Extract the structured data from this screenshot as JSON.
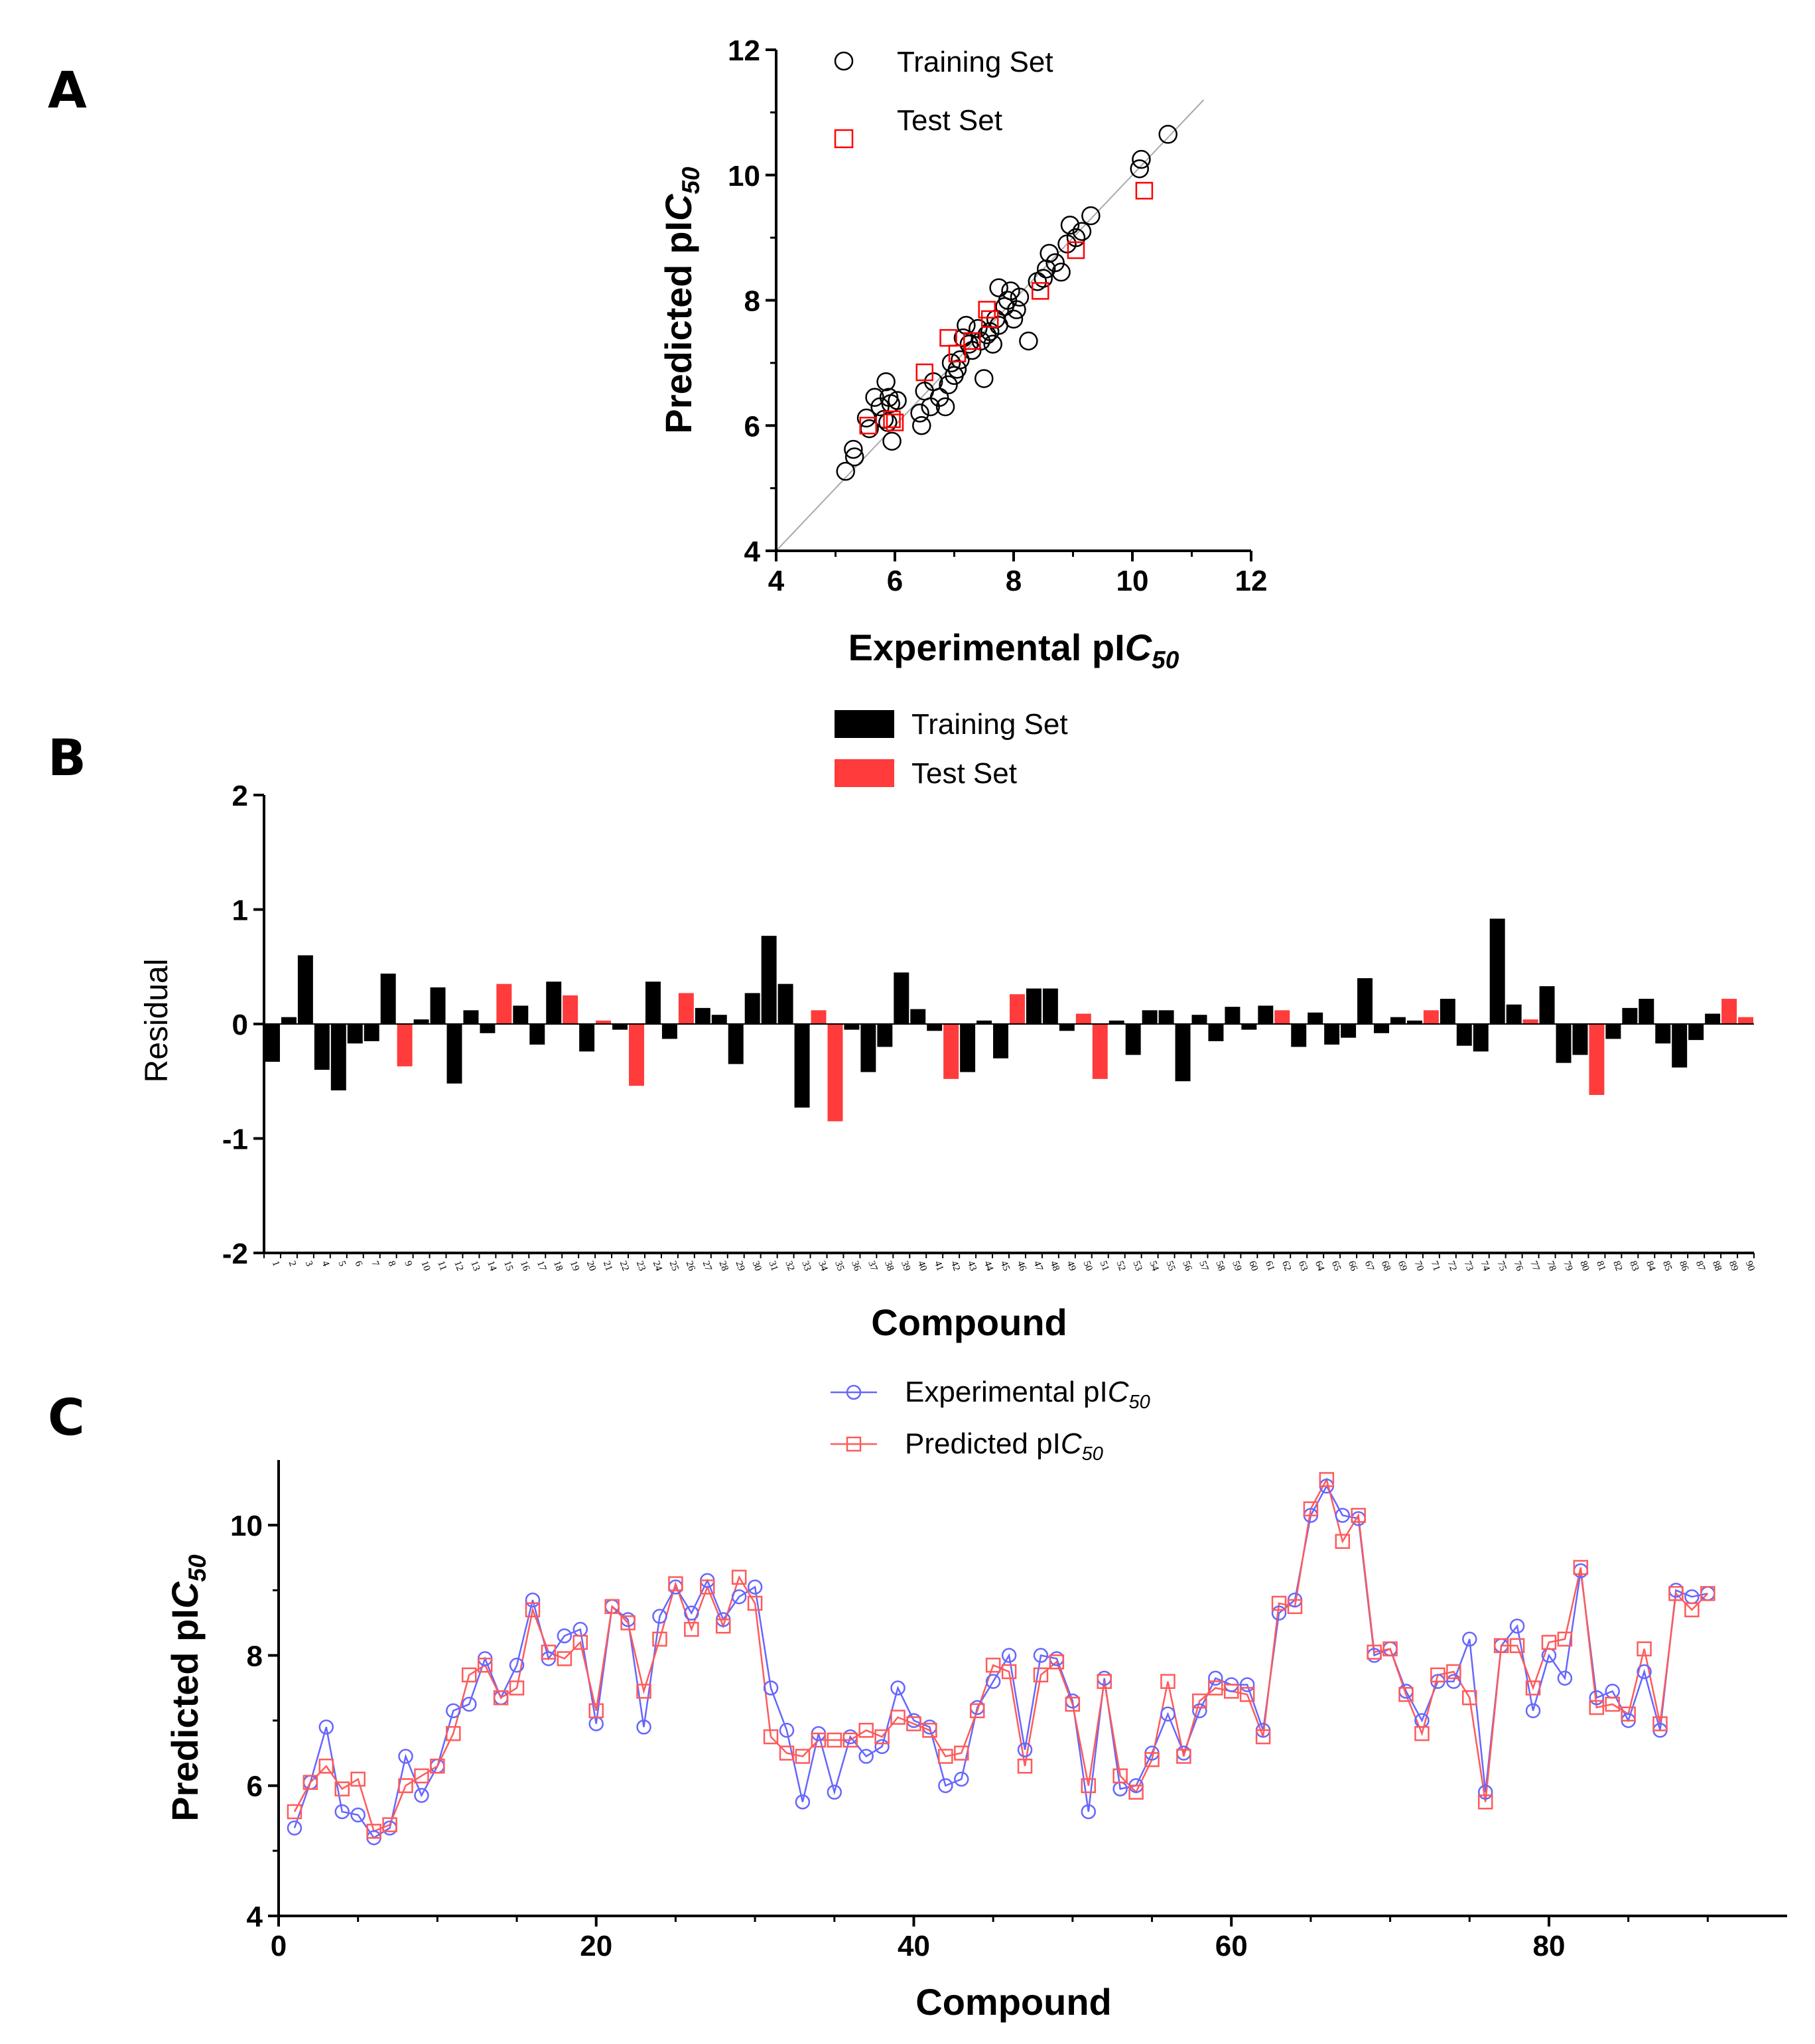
{
  "panels": {
    "a": "A",
    "b": "B",
    "c": "C"
  },
  "chart_data": [
    {
      "type": "scatter",
      "xlabel": "Experimental pIC50",
      "ylabel": "Predicted pIC50",
      "xlim": [
        4,
        12
      ],
      "ylim": [
        4,
        12
      ],
      "xticks": [
        "4",
        "6",
        "8",
        "10",
        "12"
      ],
      "yticks": [
        "4",
        "6",
        "8",
        "10",
        "12"
      ],
      "legend": "top-left",
      "grid": false,
      "identity_line": true,
      "series": [
        {
          "name": "Training Set",
          "marker": "circle",
          "color": "#000000",
          "x": [
            5.17,
            5.32,
            5.3,
            5.52,
            5.57,
            5.66,
            5.75,
            5.85,
            5.9,
            5.93,
            6.04,
            5.95,
            5.88,
            5.82,
            6.45,
            6.6,
            6.5,
            6.42,
            6.65,
            6.75,
            6.85,
            6.9,
            7.0,
            7.1,
            7.15,
            7.2,
            7.3,
            7.4,
            7.45,
            7.5,
            7.6,
            7.7,
            7.75,
            7.85,
            7.9,
            7.95,
            8.05,
            8.1,
            8.25,
            8.4,
            8.55,
            8.6,
            8.7,
            8.8,
            8.9,
            8.95,
            9.05,
            9.15,
            9.3,
            10.12,
            10.15,
            10.6,
            7.65,
            7.75,
            7.55,
            6.95,
            7.05,
            7.25,
            8.0,
            8.5
          ],
          "y": [
            5.27,
            5.5,
            5.62,
            6.12,
            5.95,
            6.45,
            6.3,
            6.7,
            6.45,
            6.35,
            6.4,
            5.75,
            6.05,
            6.1,
            6.0,
            6.3,
            6.55,
            6.2,
            6.7,
            6.45,
            6.3,
            6.65,
            6.8,
            7.05,
            7.4,
            7.6,
            7.2,
            7.55,
            7.35,
            6.75,
            7.5,
            7.7,
            8.2,
            7.9,
            8.0,
            8.15,
            7.85,
            8.05,
            7.35,
            8.3,
            8.5,
            8.75,
            8.6,
            8.45,
            8.9,
            9.2,
            9.0,
            9.1,
            9.35,
            10.1,
            10.25,
            10.65,
            7.3,
            7.6,
            7.45,
            7.0,
            6.9,
            7.3,
            7.7,
            8.35
          ]
        },
        {
          "name": "Test Set",
          "marker": "square",
          "color": "#ff0000",
          "x": [
            5.55,
            5.95,
            6.0,
            6.5,
            6.9,
            7.05,
            7.3,
            7.55,
            7.6,
            8.45,
            9.05,
            10.2
          ],
          "y": [
            6.0,
            6.1,
            6.05,
            6.85,
            7.4,
            7.15,
            7.35,
            7.85,
            7.7,
            8.15,
            8.8,
            9.75
          ]
        }
      ]
    },
    {
      "type": "bar",
      "xlabel": "Compound",
      "ylabel": "Residual",
      "ylim": [
        -2,
        2
      ],
      "yticks": [
        "-2",
        "-1",
        "0",
        "1",
        "2"
      ],
      "legend": "top-center",
      "grid": false,
      "series_names": [
        "Training Set",
        "Test Set"
      ],
      "colors": {
        "training": "#000000",
        "test": "#ff3b3b"
      },
      "categories": [
        "1",
        "2",
        "3",
        "4",
        "5",
        "6",
        "7",
        "8",
        "9",
        "10",
        "11",
        "12",
        "13",
        "14",
        "15",
        "16",
        "17",
        "18",
        "19",
        "20",
        "21",
        "22",
        "23",
        "24",
        "25",
        "26",
        "27",
        "28",
        "29",
        "30",
        "31",
        "32",
        "33",
        "34",
        "35",
        "36",
        "37",
        "38",
        "39",
        "40",
        "41",
        "42",
        "43",
        "44",
        "45",
        "46",
        "47",
        "48",
        "49",
        "50",
        "51",
        "52",
        "53",
        "54",
        "55",
        "56",
        "57",
        "58",
        "59",
        "60",
        "61",
        "62",
        "63",
        "64",
        "65",
        "66",
        "67",
        "68",
        "69",
        "70",
        "71",
        "72",
        "73",
        "74",
        "75",
        "76",
        "77",
        "78",
        "79",
        "80",
        "81",
        "82",
        "83",
        "84",
        "85",
        "86",
        "87",
        "88",
        "89",
        "90"
      ],
      "values": [
        -0.33,
        0.06,
        0.6,
        -0.4,
        -0.58,
        -0.17,
        -0.15,
        0.44,
        -0.37,
        0.04,
        0.32,
        -0.52,
        0.12,
        -0.08,
        0.35,
        0.16,
        -0.18,
        0.37,
        0.25,
        -0.24,
        0.03,
        -0.05,
        -0.54,
        0.37,
        -0.13,
        0.27,
        0.14,
        0.08,
        -0.35,
        0.27,
        0.77,
        0.35,
        -0.73,
        0.12,
        -0.85,
        -0.05,
        -0.42,
        -0.2,
        0.45,
        0.13,
        -0.06,
        -0.48,
        -0.42,
        0.03,
        -0.3,
        0.26,
        0.31,
        0.31,
        -0.06,
        0.09,
        -0.48,
        0.03,
        -0.27,
        0.12,
        0.12,
        -0.5,
        0.08,
        -0.15,
        0.15,
        -0.05,
        0.16,
        0.12,
        -0.2,
        0.1,
        -0.18,
        -0.12,
        0.4,
        -0.08,
        0.06,
        0.03,
        0.12,
        0.22,
        -0.19,
        -0.24,
        0.92,
        0.17,
        0.04,
        0.33,
        -0.34,
        -0.27,
        -0.62,
        -0.13,
        0.14,
        0.22,
        -0.17,
        -0.38,
        -0.14,
        0.09,
        0.22,
        0.06
      ],
      "test_set": [
        9,
        15,
        19,
        21,
        23,
        26,
        34,
        35,
        42,
        46,
        50,
        51,
        62,
        71,
        77,
        81,
        89,
        90
      ]
    },
    {
      "type": "line",
      "xlabel": "Compound",
      "ylabel": "Predicted pIC50",
      "xlim": [
        0,
        95
      ],
      "ylim": [
        4,
        11
      ],
      "xticks": [
        "0",
        "20",
        "40",
        "60",
        "80"
      ],
      "yticks": [
        "4",
        "6",
        "8",
        "10"
      ],
      "legend": "top-center",
      "grid": false,
      "series": [
        {
          "name": "Experimental pIC50",
          "marker": "circle",
          "color": "#6666ff",
          "values": [
            5.35,
            6.05,
            6.9,
            5.6,
            5.55,
            5.2,
            5.35,
            6.45,
            5.85,
            6.3,
            7.15,
            7.25,
            7.95,
            7.35,
            7.85,
            8.85,
            7.95,
            8.3,
            8.4,
            6.95,
            8.75,
            8.55,
            6.9,
            8.6,
            9.05,
            8.65,
            9.15,
            8.55,
            8.9,
            9.05,
            7.5,
            6.85,
            5.75,
            6.8,
            5.9,
            6.75,
            6.45,
            6.6,
            7.5,
            7.0,
            6.9,
            6.0,
            6.1,
            7.2,
            7.6,
            8.0,
            6.55,
            8.0,
            7.95,
            7.3,
            5.6,
            7.65,
            5.95,
            6.0,
            6.5,
            7.1,
            6.5,
            7.15,
            7.65,
            7.55,
            7.55,
            6.85,
            8.65,
            8.85,
            10.15,
            10.6,
            10.15,
            10.1,
            8.0,
            8.1,
            7.45,
            7.0,
            7.6,
            7.6,
            8.25,
            5.9,
            8.15,
            8.45,
            7.15,
            8.0,
            7.65,
            9.3,
            7.35,
            7.45,
            7.0,
            7.75,
            6.85,
            9.0,
            8.9,
            8.95
          ]
        },
        {
          "name": "Predicted pIC50",
          "marker": "square",
          "color": "#ff5a5a",
          "values": [
            5.6,
            6.05,
            6.3,
            5.95,
            6.1,
            5.3,
            5.4,
            6.0,
            6.15,
            6.3,
            6.8,
            7.7,
            7.85,
            7.35,
            7.5,
            8.7,
            8.05,
            7.95,
            8.2,
            7.15,
            8.75,
            8.5,
            7.45,
            8.25,
            9.1,
            8.4,
            9.05,
            8.45,
            9.2,
            8.8,
            6.75,
            6.5,
            6.45,
            6.7,
            6.7,
            6.7,
            6.85,
            6.75,
            7.05,
            6.95,
            6.85,
            6.45,
            6.5,
            7.15,
            7.85,
            7.75,
            6.3,
            7.7,
            7.9,
            7.25,
            6.0,
            7.6,
            6.15,
            5.9,
            6.4,
            7.6,
            6.45,
            7.3,
            7.5,
            7.45,
            7.4,
            6.75,
            8.8,
            8.75,
            10.25,
            10.7,
            9.75,
            10.15,
            8.05,
            8.1,
            7.4,
            6.8,
            7.7,
            7.75,
            7.35,
            5.75,
            8.15,
            8.15,
            7.5,
            8.2,
            8.25,
            9.35,
            7.2,
            7.25,
            7.1,
            8.1,
            6.95,
            8.95,
            8.7,
            8.95
          ]
        }
      ]
    }
  ]
}
